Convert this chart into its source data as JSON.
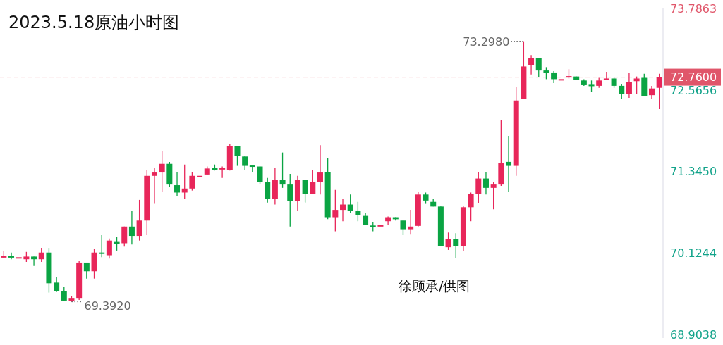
{
  "chart_data": {
    "type": "candlestick",
    "title": "2023.5.18原油小时图",
    "categories": [
      null,
      null,
      null,
      null,
      null,
      null,
      null,
      null,
      null,
      null,
      null,
      null,
      null,
      null,
      null,
      null,
      null,
      null,
      null,
      null,
      null,
      null,
      null,
      null,
      null,
      null,
      null,
      null,
      null,
      null,
      null,
      null,
      null,
      null,
      null,
      null,
      null,
      null,
      null,
      null,
      null,
      null,
      null,
      null,
      null,
      null,
      null,
      null,
      null,
      null,
      null,
      null,
      null,
      null,
      null,
      null,
      null,
      null,
      null,
      null,
      null,
      null,
      null,
      null,
      null,
      null,
      null,
      null,
      null,
      null,
      null,
      null,
      null,
      null,
      null,
      null,
      null,
      null,
      null,
      null,
      null,
      null,
      null,
      null,
      null,
      null,
      null,
      null
    ],
    "ohlc": [
      [
        70.06,
        70.15,
        70.05,
        70.07
      ],
      [
        70.07,
        70.13,
        70.03,
        70.06
      ],
      [
        70.05,
        70.05,
        70.05,
        70.05
      ],
      [
        70.03,
        70.14,
        69.99,
        70.07
      ],
      [
        70.07,
        70.07,
        69.93,
        70.03
      ],
      [
        70.03,
        70.2,
        69.99,
        70.13
      ],
      [
        70.13,
        70.2,
        69.53,
        69.67
      ],
      [
        69.68,
        69.76,
        69.54,
        69.55
      ],
      [
        69.55,
        69.61,
        69.41,
        69.41
      ],
      [
        69.41,
        69.48,
        69.392,
        69.45
      ],
      [
        69.45,
        70.01,
        69.42,
        69.98
      ],
      [
        69.98,
        69.98,
        69.74,
        69.85
      ],
      [
        69.85,
        70.18,
        69.74,
        70.13
      ],
      [
        70.13,
        70.39,
        70.06,
        70.11
      ],
      [
        70.09,
        70.34,
        70.04,
        70.31
      ],
      [
        70.3,
        70.36,
        70.16,
        70.26
      ],
      [
        70.27,
        70.52,
        70.22,
        70.52
      ],
      [
        70.52,
        70.76,
        70.25,
        70.38
      ],
      [
        70.38,
        70.92,
        70.31,
        70.61
      ],
      [
        70.61,
        71.37,
        70.39,
        71.28
      ],
      [
        71.28,
        71.4,
        70.86,
        71.33
      ],
      [
        71.33,
        71.65,
        71.04,
        71.46
      ],
      [
        71.46,
        71.49,
        71.12,
        71.15
      ],
      [
        71.14,
        71.33,
        70.98,
        71.03
      ],
      [
        71.03,
        71.45,
        70.94,
        71.09
      ],
      [
        71.09,
        71.34,
        71.06,
        71.28
      ],
      [
        71.27,
        71.27,
        71.27,
        71.27
      ],
      [
        71.3,
        71.42,
        71.3,
        71.39
      ],
      [
        71.4,
        71.45,
        71.36,
        71.37
      ],
      [
        71.38,
        71.42,
        71.25,
        71.39
      ],
      [
        71.37,
        71.76,
        71.36,
        71.73
      ],
      [
        71.73,
        71.73,
        71.43,
        71.58
      ],
      [
        71.57,
        71.58,
        71.37,
        71.43
      ],
      [
        71.43,
        71.43,
        71.34,
        71.42
      ],
      [
        71.42,
        71.42,
        71.16,
        71.19
      ],
      [
        71.19,
        71.25,
        70.88,
        70.94
      ],
      [
        70.94,
        71.4,
        70.85,
        71.22
      ],
      [
        71.22,
        71.63,
        71.1,
        71.15
      ],
      [
        71.15,
        71.31,
        70.52,
        70.9
      ],
      [
        70.9,
        71.28,
        70.75,
        71.22
      ],
      [
        71.22,
        71.22,
        70.88,
        71.01
      ],
      [
        71.01,
        71.37,
        71.01,
        71.19
      ],
      [
        71.19,
        71.74,
        71.0,
        71.33
      ],
      [
        71.34,
        71.55,
        70.63,
        70.66
      ],
      [
        70.66,
        71.07,
        70.45,
        70.77
      ],
      [
        70.77,
        70.94,
        70.6,
        70.85
      ],
      [
        70.85,
        71.0,
        70.73,
        70.76
      ],
      [
        70.76,
        70.89,
        70.6,
        70.69
      ],
      [
        70.68,
        70.73,
        70.54,
        70.54
      ],
      [
        70.53,
        70.58,
        70.45,
        70.52
      ],
      [
        70.53,
        70.53,
        70.53,
        70.53
      ],
      [
        70.6,
        70.67,
        70.55,
        70.66
      ],
      [
        70.66,
        70.66,
        70.61,
        70.63
      ],
      [
        70.61,
        70.61,
        70.39,
        70.48
      ],
      [
        70.48,
        70.77,
        70.4,
        70.52
      ],
      [
        70.53,
        71.04,
        70.52,
        71.0
      ],
      [
        71.0,
        71.03,
        70.86,
        70.91
      ],
      [
        70.89,
        70.94,
        70.82,
        70.82
      ],
      [
        70.82,
        70.82,
        70.23,
        70.23
      ],
      [
        70.21,
        70.43,
        70.17,
        70.33
      ],
      [
        70.33,
        70.42,
        70.05,
        70.23
      ],
      [
        70.23,
        70.82,
        70.15,
        70.81
      ],
      [
        70.81,
        71.03,
        70.6,
        71.01
      ],
      [
        71.01,
        71.34,
        70.87,
        71.24
      ],
      [
        71.24,
        71.34,
        71.0,
        71.1
      ],
      [
        71.1,
        71.19,
        70.78,
        71.15
      ],
      [
        71.15,
        72.12,
        71.13,
        71.47
      ],
      [
        71.49,
        71.88,
        71.04,
        71.43
      ],
      [
        71.43,
        72.61,
        71.28,
        72.41
      ],
      [
        72.43,
        73.298,
        72.43,
        72.92
      ],
      [
        72.94,
        73.09,
        72.8,
        73.05
      ],
      [
        73.05,
        73.05,
        72.76,
        72.86
      ],
      [
        72.86,
        72.91,
        72.73,
        72.82
      ],
      [
        72.83,
        72.85,
        72.67,
        72.73
      ],
      [
        72.72,
        72.72,
        72.72,
        72.72
      ],
      [
        72.76,
        72.88,
        72.74,
        72.77
      ],
      [
        72.77,
        72.77,
        72.72,
        72.72
      ],
      [
        72.71,
        72.73,
        72.63,
        72.64
      ],
      [
        72.64,
        72.71,
        72.54,
        72.63
      ],
      [
        72.63,
        72.75,
        72.6,
        72.71
      ],
      [
        72.72,
        72.84,
        72.72,
        72.74
      ],
      [
        72.74,
        72.75,
        72.6,
        72.63
      ],
      [
        72.63,
        72.66,
        72.43,
        72.51
      ],
      [
        72.51,
        72.83,
        72.45,
        72.69
      ],
      [
        72.7,
        72.77,
        72.51,
        72.74
      ],
      [
        72.75,
        72.81,
        72.47,
        72.48
      ],
      [
        72.49,
        72.63,
        72.43,
        72.59
      ],
      [
        72.6,
        72.81,
        72.28,
        72.76
      ]
    ],
    "ylim": [
      68.85,
      73.79
    ],
    "yticks": [
      {
        "value": 73.7863,
        "label": "73.7863"
      },
      {
        "value": 72.5656,
        "label": "72.5656"
      },
      {
        "value": 71.345,
        "label": "71.3450"
      },
      {
        "value": 70.1244,
        "label": "70.1244"
      },
      {
        "value": 68.9038,
        "label": "68.9038"
      }
    ],
    "tick_labels": "y",
    "grid": false,
    "ref_lines": [
      {
        "axis": "y",
        "value": 72.76,
        "label": "72.7600",
        "color": "#e0566a",
        "line_style": "dashed"
      }
    ],
    "annotations": [
      "73.2980",
      "69.3920",
      "徐顾承/供图"
    ]
  }
}
